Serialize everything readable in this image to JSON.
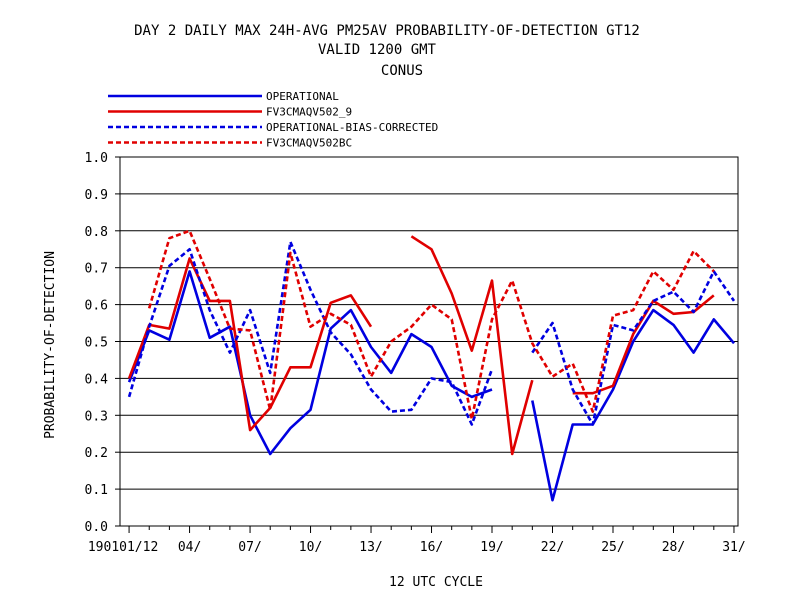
{
  "title_lines": [
    "DAY 2 DAILY MAX   24H-AVG PM25AV PROBABILITY-OF-DETECTION GT12",
    "VALID 1200 GMT",
    "CONUS"
  ],
  "chart_data": {
    "type": "line",
    "xlabel": "12 UTC CYCLE",
    "ylabel": "PROBABILITY-OF-DETECTION",
    "ylim": [
      0,
      1.0
    ],
    "xlim": [
      1,
      31
    ],
    "grid": true,
    "legend_position": "top-left",
    "yticks": [
      "0.0",
      "0.1",
      "0.2",
      "0.3",
      "0.4",
      "0.5",
      "0.6",
      "0.7",
      "0.8",
      "0.9",
      "1.0"
    ],
    "xtick_values": [
      1,
      4,
      7,
      10,
      13,
      16,
      19,
      22,
      25,
      28,
      31
    ],
    "xtick_labels": [
      "190101/12",
      "04/",
      "07/",
      "10/",
      "13/",
      "16/",
      "19/",
      "22/",
      "25/",
      "28/",
      "31/"
    ],
    "x": [
      1,
      2,
      3,
      4,
      5,
      6,
      7,
      8,
      9,
      10,
      11,
      12,
      13,
      14,
      15,
      16,
      17,
      18,
      19,
      20,
      21,
      22,
      23,
      24,
      25,
      26,
      27,
      28,
      29,
      30,
      31
    ],
    "series": [
      {
        "name": "OPERATIONAL",
        "color": "#0000e0",
        "dash": "solid",
        "values": [
          0.39,
          0.53,
          0.505,
          0.69,
          0.51,
          0.54,
          0.3,
          0.195,
          0.265,
          0.315,
          0.535,
          0.585,
          0.485,
          0.415,
          0.52,
          0.485,
          0.38,
          0.35,
          0.37,
          null,
          0.34,
          0.07,
          0.275,
          0.275,
          0.37,
          0.5,
          0.585,
          0.545,
          0.47,
          0.56,
          0.495
        ]
      },
      {
        "name": "FV3CMAQV502_9",
        "color": "#e00000",
        "dash": "solid",
        "values": [
          0.4,
          0.545,
          0.535,
          0.725,
          0.61,
          0.61,
          0.26,
          0.32,
          0.43,
          0.43,
          0.605,
          0.625,
          0.54,
          null,
          0.785,
          0.75,
          0.63,
          0.475,
          0.665,
          0.195,
          0.395,
          null,
          0.36,
          0.36,
          0.38,
          0.52,
          0.61,
          0.575,
          0.58,
          0.625,
          null
        ]
      },
      {
        "name": "OPERATIONAL-BIAS-CORRECTED",
        "color": "#0000e0",
        "dash": "dashed",
        "values": [
          0.35,
          0.54,
          0.705,
          0.75,
          0.585,
          0.47,
          0.585,
          0.415,
          0.77,
          0.64,
          0.525,
          0.465,
          0.37,
          0.31,
          0.315,
          0.4,
          0.39,
          0.275,
          0.425,
          null,
          0.47,
          0.55,
          0.37,
          0.275,
          0.545,
          0.53,
          0.61,
          0.635,
          0.58,
          0.69,
          0.61
        ]
      },
      {
        "name": "FV3CMAQV502BC",
        "color": "#e00000",
        "dash": "dashed",
        "values": [
          null,
          0.59,
          0.78,
          0.8,
          0.67,
          0.535,
          0.53,
          0.315,
          0.74,
          0.54,
          0.575,
          0.545,
          0.405,
          0.5,
          0.54,
          0.6,
          0.56,
          0.29,
          0.56,
          0.665,
          0.495,
          0.405,
          0.44,
          0.31,
          0.57,
          0.585,
          0.69,
          0.64,
          0.745,
          0.69,
          null
        ]
      }
    ]
  }
}
